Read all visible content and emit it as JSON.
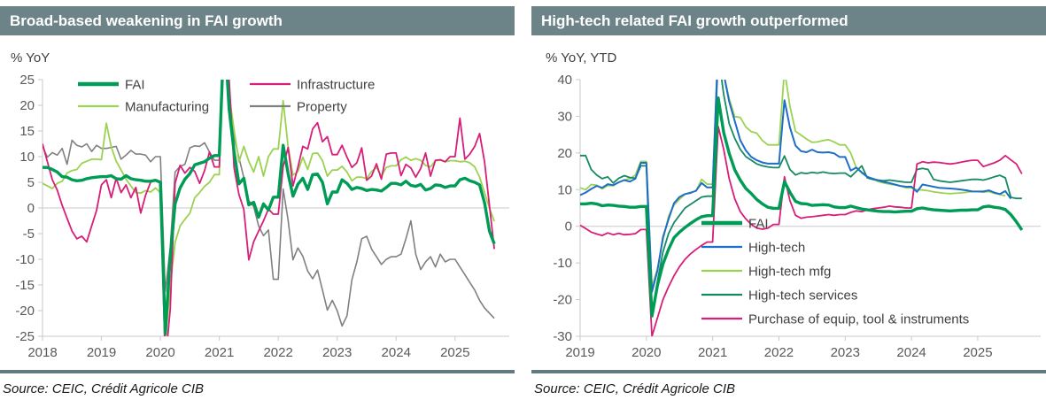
{
  "panels": [
    {
      "title": "Broad-based weakening in FAI growth",
      "source": "Source: CEIC, Crédit Agricole CIB"
    },
    {
      "title": "High-tech related FAI growth outperformed",
      "source": "Source: CEIC, Crédit Agricole CIB"
    }
  ],
  "colors": {
    "header_bar": "#6C8488",
    "separator_bar": "#5F7A80",
    "axis_line": "#C9C9C9",
    "tick_label": "#595959",
    "legend_text": "#404040"
  },
  "chart_data": [
    {
      "type": "line",
      "title": "Broad-based weakening in FAI growth",
      "ylabel": "% YoY",
      "xlabel": "",
      "grid": "zero-line only",
      "legend_position": "top-left, two columns, inside plot",
      "xlim": [
        2018,
        2025.92
      ],
      "ylim": [
        -25,
        25
      ],
      "xticks": [
        2018,
        2019,
        2020,
        2021,
        2022,
        2023,
        2024,
        2025
      ],
      "yticks": [
        25,
        20,
        15,
        10,
        5,
        0,
        -5,
        -10,
        -15,
        -20,
        -25
      ],
      "x_monthly_from": 2018,
      "series": [
        {
          "name": "FAI",
          "color": "#009B55",
          "width": 3.4,
          "values": [
            7.9,
            7.9,
            7.5,
            7.0,
            6.1,
            6.0,
            5.5,
            5.3,
            5.4,
            5.7,
            5.9,
            6.0,
            6.1,
            6.1,
            6.3,
            5.7,
            5.6,
            6.3,
            5.7,
            5.5,
            5.4,
            5.2,
            5.2,
            5.4,
            5.0,
            -24.5,
            -9.5,
            0.8,
            3.9,
            5.6,
            6.7,
            8.4,
            8.7,
            9.0,
            9.7,
            10.2,
            10.2,
            35.0,
            19.3,
            10.9,
            4.7,
            5.8,
            0.6,
            1.1,
            -1.8,
            0.8,
            -0.4,
            2.1,
            2.1,
            12.2,
            6.7,
            2.3,
            4.6,
            5.8,
            3.6,
            6.5,
            6.6,
            5.0,
            0.8,
            3.1,
            3.1,
            5.5,
            4.8,
            3.6,
            4.0,
            3.8,
            3.4,
            3.6,
            3.5,
            3.3,
            4.0,
            4.8,
            4.8,
            4.5,
            5.2,
            4.4,
            4.2,
            4.6,
            3.5,
            3.8,
            4.5,
            4.4,
            4.0,
            4.3,
            4.3,
            5.5,
            5.8,
            5.3,
            5.0,
            4.5,
            1.0,
            -4.5,
            -7.0
          ]
        },
        {
          "name": "Manufacturing",
          "color": "#9BD250",
          "width": 1.8,
          "values": [
            4.8,
            4.3,
            3.8,
            4.8,
            5.2,
            6.8,
            7.3,
            7.5,
            8.7,
            9.1,
            9.5,
            9.5,
            9.4,
            16.5,
            11.9,
            9.1,
            7.4,
            5.6,
            4.3,
            3.0,
            2.9,
            3.4,
            3.1,
            3.9,
            3.0,
            -26.5,
            -15.2,
            -6.7,
            -3.5,
            -2.2,
            -1.0,
            2.0,
            3.0,
            4.2,
            5.0,
            6.5,
            6.5,
            43.0,
            22.0,
            15.2,
            9.0,
            12.0,
            9.1,
            7.0,
            10.0,
            6.2,
            10.0,
            11.5,
            11.5,
            20.9,
            11.9,
            6.4,
            7.1,
            9.9,
            7.5,
            10.6,
            10.7,
            9.2,
            6.2,
            7.4,
            7.4,
            8.1,
            7.0,
            5.3,
            6.0,
            6.0,
            5.7,
            7.1,
            7.9,
            6.2,
            7.9,
            8.2,
            8.2,
            9.4,
            9.9,
            9.3,
            9.6,
            9.3,
            8.3,
            8.0,
            9.2,
            9.3,
            9.0,
            9.2,
            9.2,
            9.0,
            9.1,
            8.8,
            8.0,
            6.0,
            3.0,
            0.0,
            -2.6
          ]
        },
        {
          "name": "Infrastructure",
          "color": "#D71E78",
          "width": 1.8,
          "values": [
            12.5,
            9.0,
            5.5,
            3.5,
            0.5,
            -2.0,
            -4.5,
            -6.0,
            -5.5,
            -6.6,
            -3.5,
            -0.5,
            4.5,
            5.5,
            2.0,
            5.8,
            3.0,
            4.5,
            2.0,
            4.0,
            -1.0,
            2.5,
            5.0,
            5.5,
            5.0,
            -30.3,
            -19.7,
            4.8,
            8.3,
            6.8,
            7.9,
            7.1,
            4.8,
            7.3,
            10.9,
            8.0,
            8.0,
            36.6,
            25.0,
            7.8,
            2.6,
            -0.3,
            -10.1,
            -6.6,
            -4.5,
            -2.5,
            -0.2,
            -1.2,
            -1.2,
            8.1,
            11.8,
            4.3,
            7.9,
            12.0,
            11.5,
            15.4,
            16.6,
            12.9,
            13.9,
            10.4,
            10.4,
            12.2,
            9.9,
            7.9,
            8.8,
            11.7,
            5.4,
            6.2,
            8.6,
            5.6,
            10.5,
            10.7,
            10.7,
            6.3,
            8.5,
            7.8,
            6.0,
            7.7,
            10.7,
            6.2,
            9.3,
            9.4,
            9.0,
            10.0,
            10.0,
            17.5,
            9.5,
            10.5,
            12.0,
            14.5,
            9.0,
            0.5,
            -8.0
          ]
        },
        {
          "name": "Property",
          "color": "#808080",
          "width": 1.6,
          "values": [
            12.0,
            9.9,
            10.8,
            10.3,
            11.6,
            8.5,
            13.2,
            12.2,
            11.9,
            12.5,
            11.0,
            12.2,
            11.6,
            11.6,
            11.8,
            12.0,
            9.5,
            10.3,
            11.2,
            10.5,
            10.5,
            10.3,
            9.0,
            10.0,
            10.0,
            -16.3,
            -7.7,
            7.0,
            8.1,
            8.5,
            11.7,
            12.1,
            12.0,
            12.7,
            10.9,
            9.3,
            9.3,
            38.3,
            23.0,
            13.7,
            9.8,
            5.9,
            1.4,
            0.3,
            -3.5,
            -5.4,
            -4.3,
            -13.9,
            -13.9,
            3.7,
            -2.4,
            -10.1,
            -7.8,
            -9.4,
            -12.3,
            -13.8,
            -12.1,
            -16.0,
            -19.9,
            -18.0,
            -20.0,
            -23.0,
            -21.0,
            -14.0,
            -10.5,
            -6.0,
            -5.5,
            -8.0,
            -9.5,
            -11.0,
            -10.0,
            -9.5,
            -9.5,
            -9.0,
            -6.0,
            -2.5,
            -9.0,
            -12.0,
            -10.5,
            -9.5,
            -11.5,
            -9.0,
            -10.5,
            -10.0,
            -10.0,
            -11.5,
            -13.0,
            -14.5,
            -16.0,
            -18.0,
            -19.5,
            -20.5,
            -21.5
          ]
        }
      ]
    },
    {
      "type": "line",
      "title": "High-tech related FAI growth outperformed",
      "ylabel": "% YoY, YTD",
      "xlabel": "",
      "grid": "zero-line only",
      "legend_position": "bottom-center-right, vertical stack, inside plot",
      "xlim": [
        2019,
        2025.95
      ],
      "ylim": [
        -30,
        40
      ],
      "xticks": [
        2019,
        2020,
        2021,
        2022,
        2023,
        2024,
        2025
      ],
      "yticks": [
        40,
        30,
        20,
        10,
        0,
        -10,
        -20,
        -30
      ],
      "x_monthly_from": 2019,
      "series": [
        {
          "name": "FAI",
          "color": "#009B55",
          "width": 3.4,
          "values": [
            6.1,
            6.1,
            6.3,
            6.1,
            5.6,
            5.8,
            5.7,
            5.5,
            5.4,
            5.2,
            5.2,
            5.4,
            5.4,
            -24.5,
            -16.1,
            -10.3,
            -6.3,
            -3.1,
            -1.6,
            -0.3,
            0.8,
            1.8,
            2.6,
            2.9,
            2.9,
            35.0,
            25.6,
            19.9,
            15.4,
            12.6,
            10.3,
            8.9,
            7.3,
            6.1,
            5.2,
            4.9,
            4.9,
            12.2,
            9.3,
            6.8,
            6.2,
            6.1,
            5.7,
            5.8,
            5.9,
            5.8,
            5.3,
            5.1,
            5.1,
            5.5,
            5.1,
            4.7,
            4.5,
            4.3,
            4.1,
            4.0,
            4.0,
            3.9,
            4.0,
            4.1,
            4.1,
            4.8,
            5.0,
            4.7,
            4.5,
            4.4,
            4.3,
            4.2,
            4.3,
            4.4,
            4.4,
            4.5,
            4.5,
            5.3,
            5.5,
            5.2,
            5.0,
            4.6,
            3.2,
            1.2,
            -1.0
          ]
        },
        {
          "name": "High-tech",
          "color": "#1E6EC8",
          "width": 2.0,
          "values": [
            8.5,
            9.2,
            10.2,
            11.0,
            10.5,
            11.5,
            11.2,
            12.0,
            12.6,
            12.2,
            13.0,
            17.3,
            17.3,
            -17.9,
            -12.1,
            -3.0,
            1.9,
            6.3,
            8.0,
            8.8,
            9.1,
            9.7,
            11.8,
            10.6,
            10.6,
            50.0,
            41.6,
            34.0,
            28.7,
            23.5,
            20.7,
            18.9,
            18.0,
            17.4,
            17.1,
            17.1,
            17.1,
            34.4,
            27.0,
            22.0,
            20.5,
            20.2,
            20.9,
            20.2,
            20.1,
            20.2,
            19.9,
            18.9,
            18.9,
            15.2,
            16.0,
            14.7,
            13.5,
            13.0,
            12.5,
            12.1,
            11.8,
            11.4,
            11.0,
            10.8,
            10.8,
            9.4,
            11.4,
            11.1,
            10.8,
            10.5,
            10.4,
            10.3,
            10.2,
            10.0,
            9.8,
            9.5,
            9.5,
            9.5,
            9.8,
            9.2,
            8.8,
            9.6,
            7.5,
            null,
            null
          ]
        },
        {
          "name": "High-tech mfg",
          "color": "#9BD250",
          "width": 1.8,
          "values": [
            10.5,
            10.0,
            11.4,
            11.2,
            10.2,
            11.1,
            11.1,
            12.0,
            12.6,
            13.0,
            14.0,
            17.7,
            17.7,
            -16.5,
            -11.5,
            -3.8,
            2.7,
            5.8,
            7.4,
            8.8,
            9.3,
            9.6,
            12.8,
            11.5,
            11.5,
            49.2,
            41.6,
            34.8,
            29.9,
            29.7,
            27.1,
            25.8,
            25.4,
            23.4,
            22.2,
            22.2,
            22.2,
            42.7,
            32.7,
            25.9,
            24.9,
            23.8,
            22.9,
            23.0,
            23.4,
            23.6,
            23.0,
            22.2,
            22.2,
            20.0,
            16.0,
            14.5,
            13.5,
            12.8,
            12.2,
            11.8,
            11.5,
            11.3,
            11.0,
            10.5,
            10.5,
            10.0,
            9.9,
            9.7,
            9.4,
            9.2,
            9.0,
            8.9,
            9.0,
            9.1,
            9.3,
            9.5,
            9.5,
            9.3,
            9.5,
            9.0,
            8.7,
            8.3,
            null,
            null,
            null
          ]
        },
        {
          "name": "High-tech services",
          "color": "#168A62",
          "width": 1.8,
          "values": [
            19.3,
            19.3,
            15.5,
            14.0,
            13.0,
            13.5,
            11.8,
            13.1,
            13.8,
            13.3,
            13.1,
            16.5,
            16.5,
            -24.3,
            -15.0,
            -7.0,
            -2.0,
            1.0,
            3.0,
            5.0,
            6.0,
            7.0,
            8.0,
            8.2,
            8.2,
            47.0,
            36.0,
            28.0,
            24.0,
            21.0,
            19.0,
            18.0,
            17.0,
            16.5,
            16.2,
            16.0,
            16.0,
            19.2,
            15.5,
            14.0,
            14.6,
            14.4,
            14.7,
            14.5,
            14.8,
            14.5,
            14.4,
            14.5,
            14.5,
            13.5,
            15.0,
            16.5,
            13.2,
            12.8,
            12.6,
            12.4,
            12.6,
            12.4,
            12.2,
            12.0,
            12.0,
            15.5,
            15.8,
            15.5,
            12.8,
            12.4,
            12.2,
            12.0,
            12.2,
            12.4,
            12.6,
            12.8,
            12.8,
            12.6,
            13.0,
            13.5,
            13.9,
            13.2,
            7.9,
            7.6,
            7.6
          ]
        },
        {
          "name": "Purchase of equip, tool & instruments",
          "color": "#D71E78",
          "width": 1.8,
          "values": [
            0.3,
            -0.6,
            -1.6,
            -2.1,
            -2.5,
            -1.8,
            -2.3,
            -1.9,
            -2.3,
            -2.2,
            -2.0,
            -0.9,
            -0.9,
            -30.0,
            -25.0,
            -20.0,
            -16.5,
            -13.5,
            -11.0,
            -9.0,
            -7.5,
            -6.3,
            -5.2,
            -4.3,
            -4.3,
            27.2,
            21.0,
            13.0,
            7.5,
            4.0,
            2.0,
            0.5,
            -0.5,
            -0.8,
            -0.5,
            0.5,
            0.5,
            13.5,
            7.0,
            3.0,
            2.2,
            2.5,
            2.6,
            2.8,
            3.0,
            3.2,
            3.0,
            3.2,
            3.2,
            3.8,
            4.2,
            4.0,
            4.5,
            4.8,
            5.0,
            5.2,
            5.5,
            5.3,
            5.2,
            5.0,
            5.0,
            17.0,
            17.6,
            17.3,
            17.5,
            17.4,
            17.2,
            17.0,
            17.2,
            17.5,
            17.8,
            18.0,
            18.0,
            16.3,
            16.8,
            17.3,
            18.0,
            19.3,
            18.1,
            17.0,
            14.3
          ]
        }
      ]
    }
  ]
}
